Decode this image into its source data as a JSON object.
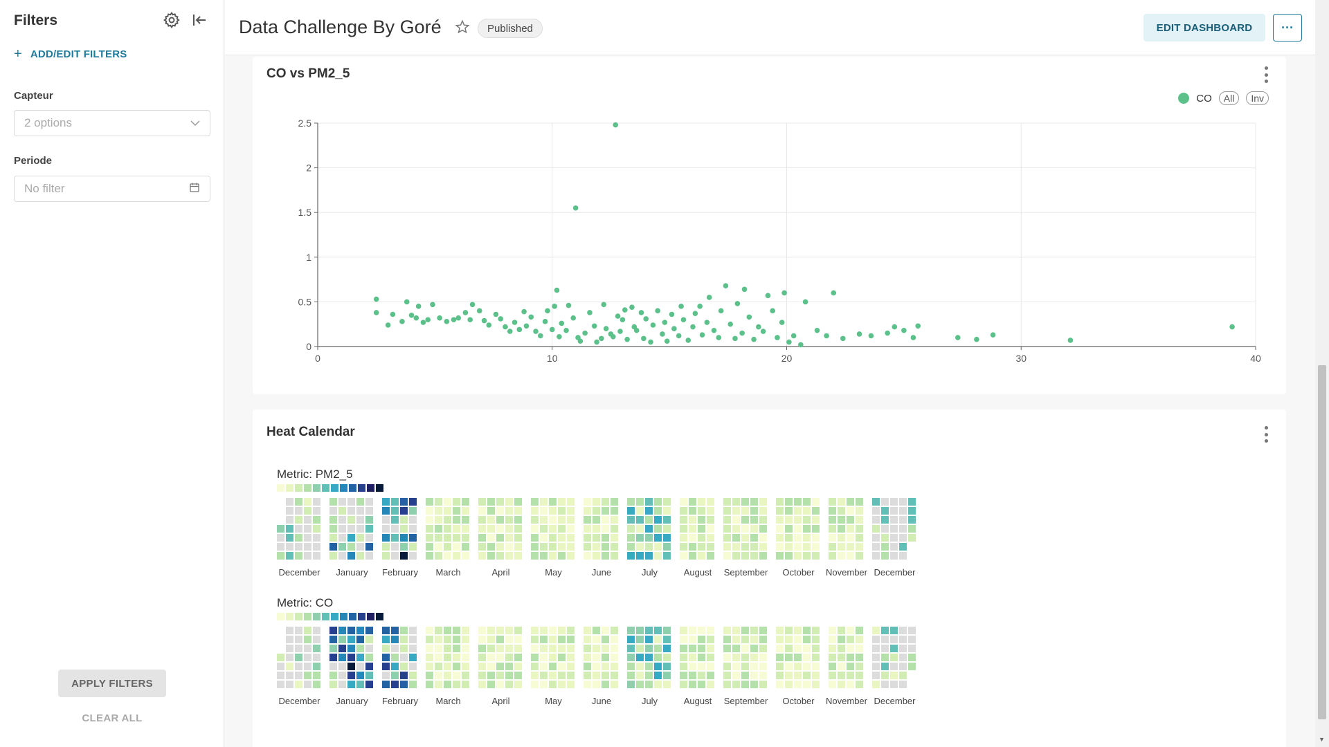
{
  "sidebar": {
    "title": "Filters",
    "add_filters_label": "ADD/EDIT FILTERS",
    "filters": [
      {
        "label": "Capteur",
        "placeholder": "2 options"
      },
      {
        "label": "Periode",
        "placeholder": "No filter"
      }
    ],
    "apply_label": "APPLY FILTERS",
    "clear_label": "CLEAR ALL"
  },
  "header": {
    "title": "Data Challenge By Goré",
    "status": "Published",
    "edit_label": "EDIT DASHBOARD",
    "more_label": "···"
  },
  "colors": {
    "accent": "#1f7a9c",
    "scatter": "#5bc08a"
  },
  "icons": [
    "gear-icon",
    "collapse-icon",
    "plus-icon",
    "chevron-down-icon",
    "calendar-icon",
    "star-icon",
    "kebab-icon"
  ],
  "scatter_card": {
    "title": "CO vs PM2_5",
    "legend": {
      "series": "CO",
      "all": "All",
      "inv": "Inv"
    }
  },
  "chart_data": {
    "type": "scatter",
    "title": "CO vs PM2_5",
    "xlim": [
      0,
      40
    ],
    "ylim": [
      0,
      2.5
    ],
    "x_ticks": [
      0,
      10,
      20,
      30,
      40
    ],
    "y_ticks": [
      0,
      0.5,
      1,
      1.5,
      2,
      2.5
    ],
    "grid": true,
    "legend_position": "top-right",
    "series": [
      {
        "name": "CO",
        "points": [
          [
            2.5,
            0.53
          ],
          [
            2.5,
            0.38
          ],
          [
            3.0,
            0.24
          ],
          [
            3.2,
            0.36
          ],
          [
            3.6,
            0.28
          ],
          [
            3.8,
            0.5
          ],
          [
            4.0,
            0.35
          ],
          [
            4.2,
            0.32
          ],
          [
            4.3,
            0.45
          ],
          [
            4.5,
            0.27
          ],
          [
            4.7,
            0.3
          ],
          [
            4.9,
            0.47
          ],
          [
            5.2,
            0.32
          ],
          [
            5.5,
            0.28
          ],
          [
            5.8,
            0.3
          ],
          [
            6.0,
            0.32
          ],
          [
            6.3,
            0.38
          ],
          [
            6.5,
            0.3
          ],
          [
            6.6,
            0.47
          ],
          [
            6.9,
            0.4
          ],
          [
            7.1,
            0.29
          ],
          [
            7.3,
            0.24
          ],
          [
            7.6,
            0.36
          ],
          [
            7.8,
            0.31
          ],
          [
            8.0,
            0.22
          ],
          [
            8.2,
            0.17
          ],
          [
            8.4,
            0.27
          ],
          [
            8.6,
            0.19
          ],
          [
            8.8,
            0.39
          ],
          [
            8.9,
            0.23
          ],
          [
            9.1,
            0.33
          ],
          [
            9.3,
            0.17
          ],
          [
            9.5,
            0.12
          ],
          [
            9.7,
            0.28
          ],
          [
            9.8,
            0.4
          ],
          [
            10.0,
            0.19
          ],
          [
            10.1,
            0.45
          ],
          [
            10.2,
            0.63
          ],
          [
            10.3,
            0.11
          ],
          [
            10.4,
            0.26
          ],
          [
            10.6,
            0.18
          ],
          [
            10.7,
            0.46
          ],
          [
            10.9,
            0.32
          ],
          [
            11.0,
            1.55
          ],
          [
            11.1,
            0.1
          ],
          [
            11.2,
            0.06
          ],
          [
            11.4,
            0.15
          ],
          [
            11.6,
            0.38
          ],
          [
            11.8,
            0.23
          ],
          [
            11.9,
            0.05
          ],
          [
            12.1,
            0.09
          ],
          [
            12.2,
            0.47
          ],
          [
            12.3,
            0.2
          ],
          [
            12.5,
            0.14
          ],
          [
            12.6,
            0.11
          ],
          [
            12.7,
            2.48
          ],
          [
            12.8,
            0.34
          ],
          [
            12.9,
            0.17
          ],
          [
            13.0,
            0.3
          ],
          [
            13.1,
            0.41
          ],
          [
            13.2,
            0.08
          ],
          [
            13.4,
            0.44
          ],
          [
            13.5,
            0.22
          ],
          [
            13.6,
            0.18
          ],
          [
            13.8,
            0.38
          ],
          [
            13.9,
            0.09
          ],
          [
            14.0,
            0.31
          ],
          [
            14.2,
            0.05
          ],
          [
            14.3,
            0.24
          ],
          [
            14.5,
            0.4
          ],
          [
            14.7,
            0.14
          ],
          [
            14.8,
            0.27
          ],
          [
            14.9,
            0.06
          ],
          [
            15.1,
            0.36
          ],
          [
            15.2,
            0.2
          ],
          [
            15.4,
            0.12
          ],
          [
            15.5,
            0.45
          ],
          [
            15.6,
            0.3
          ],
          [
            15.8,
            0.07
          ],
          [
            16.0,
            0.22
          ],
          [
            16.1,
            0.37
          ],
          [
            16.3,
            0.45
          ],
          [
            16.4,
            0.13
          ],
          [
            16.6,
            0.27
          ],
          [
            16.7,
            0.55
          ],
          [
            16.9,
            0.18
          ],
          [
            17.1,
            0.1
          ],
          [
            17.2,
            0.4
          ],
          [
            17.4,
            0.68
          ],
          [
            17.6,
            0.25
          ],
          [
            17.8,
            0.09
          ],
          [
            17.9,
            0.48
          ],
          [
            18.1,
            0.15
          ],
          [
            18.2,
            0.64
          ],
          [
            18.4,
            0.33
          ],
          [
            18.6,
            0.08
          ],
          [
            18.8,
            0.22
          ],
          [
            19.0,
            0.17
          ],
          [
            19.2,
            0.57
          ],
          [
            19.4,
            0.4
          ],
          [
            19.6,
            0.1
          ],
          [
            19.8,
            0.27
          ],
          [
            19.9,
            0.6
          ],
          [
            20.1,
            0.05
          ],
          [
            20.3,
            0.12
          ],
          [
            20.6,
            0.02
          ],
          [
            20.8,
            0.5
          ],
          [
            21.3,
            0.18
          ],
          [
            21.7,
            0.12
          ],
          [
            22.0,
            0.6
          ],
          [
            22.4,
            0.09
          ],
          [
            23.1,
            0.14
          ],
          [
            23.6,
            0.12
          ],
          [
            24.3,
            0.15
          ],
          [
            24.6,
            0.22
          ],
          [
            25.0,
            0.18
          ],
          [
            25.4,
            0.1
          ],
          [
            25.6,
            0.23
          ],
          [
            27.3,
            0.1
          ],
          [
            28.1,
            0.08
          ],
          [
            28.8,
            0.13
          ],
          [
            32.1,
            0.07
          ],
          [
            39.0,
            0.22
          ]
        ]
      }
    ]
  },
  "calendar_card": {
    "title": "Heat Calendar",
    "metrics": [
      {
        "label": "Metric: PM2_5"
      },
      {
        "label": "Metric: CO"
      }
    ],
    "months": [
      "December",
      "January",
      "February",
      "March",
      "April",
      "May",
      "June",
      "July",
      "August",
      "September",
      "October",
      "November",
      "December"
    ],
    "legend_colors": [
      "#f7fcd4",
      "#e9f6c2",
      "#d2edb3",
      "#b4e0aa",
      "#8ed0ae",
      "#62bfb7",
      "#38a9c2",
      "#2587b8",
      "#2363a4",
      "#27408d",
      "#1f1f66",
      "#081a3a"
    ]
  }
}
